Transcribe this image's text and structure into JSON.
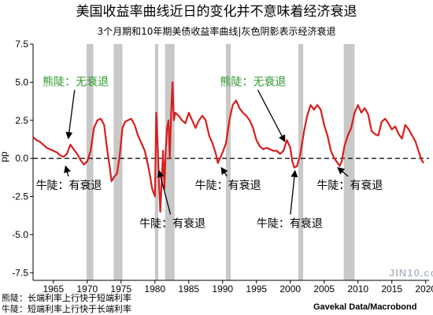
{
  "title": "美国收益率曲线近日的变化并不意味着经济衰退",
  "subtitle": "3个月期和10年期美债收益率曲线|灰色阴影表示经济衰退",
  "footnotes": [
    "熊陡：长端利率上行快于短端利率",
    "牛陡：短端利率上行快于长端利率"
  ],
  "source": "Gavekal Data/Macrobond",
  "watermark": "JIN10.com",
  "colors": {
    "line": "#d81e1e",
    "recession": "#c8c8c8",
    "bear_label": "#2e9a2e",
    "zero_line": "#000000"
  },
  "annotations": [
    {
      "text": "熊陡：无衰退",
      "type": "bear",
      "x": 1968.3,
      "y": 4.8,
      "target": [
        1967.2,
        1.3
      ]
    },
    {
      "text": "熊陡：无衰退",
      "type": "bear",
      "x": 1994.5,
      "y": 4.8,
      "target": [
        1999.2,
        1.1
      ]
    },
    {
      "text": "牛陡：有衰退",
      "type": "bull",
      "x": 1967.3,
      "y": -2.0,
      "target": [
        1966.8,
        -0.5
      ]
    },
    {
      "text": "牛陡：有衰退",
      "type": "bull",
      "x": 1982.6,
      "y": -4.5,
      "target": [
        1980.6,
        -0.8
      ]
    },
    {
      "text": "牛陡：有衰退",
      "type": "bull",
      "x": 1990.8,
      "y": -2.0,
      "target": [
        1989.8,
        -0.6
      ]
    },
    {
      "text": "牛陡：有衰退",
      "type": "bull",
      "x": 1999.9,
      "y": -4.5,
      "target": [
        2000.7,
        -0.8
      ]
    },
    {
      "text": "牛陡：有衰退",
      "type": "bull",
      "x": 2008.8,
      "y": -2.0,
      "target": [
        2007.0,
        -0.6
      ]
    }
  ],
  "chart_data": {
    "type": "line",
    "title": "美国收益率曲线近日的变化并不意味着经济衰退",
    "subtitle": "3个月期和10年期美债收益率曲线|灰色阴影表示经济衰退",
    "xlabel": "",
    "ylabel": "pp",
    "xlim": [
      1962,
      2020.5
    ],
    "ylim": [
      -8,
      7.5
    ],
    "xticks": [
      1965,
      1970,
      1975,
      1980,
      1985,
      1990,
      1995,
      2000,
      2005,
      2010,
      2015,
      2020
    ],
    "yticks": [
      7.5,
      5.0,
      2.5,
      0.0,
      -2.5,
      -5.0,
      -7.5
    ],
    "ytick_labels": [
      "7.5",
      "5.0",
      "2.5",
      "0.0",
      "-2.5",
      "-5.0",
      "-7.5"
    ],
    "reference_line": {
      "y": 0,
      "style": "dashed"
    },
    "recessions": [
      [
        1969.9,
        1970.9
      ],
      [
        1973.9,
        1975.2
      ],
      [
        1980.0,
        1980.5
      ],
      [
        1981.5,
        1982.9
      ],
      [
        1990.5,
        1991.2
      ],
      [
        2001.2,
        2001.9
      ],
      [
        2007.9,
        2009.5
      ]
    ],
    "series": [
      {
        "x": [
          1962.0,
          1962.5,
          1963.0,
          1963.5,
          1964.0,
          1964.5,
          1965.0,
          1965.5,
          1966.0,
          1966.5,
          1967.0,
          1967.5,
          1968.0,
          1968.5,
          1969.0,
          1969.5,
          1970.0,
          1970.5,
          1971.0,
          1971.5,
          1972.0,
          1972.5,
          1973.0,
          1973.3,
          1973.6,
          1974.0,
          1974.4,
          1974.8,
          1975.2,
          1975.6,
          1976.0,
          1976.5,
          1977.0,
          1977.5,
          1978.0,
          1978.5,
          1979.0,
          1979.3,
          1979.6,
          1980.0,
          1980.2,
          1980.4,
          1980.6,
          1980.8,
          1981.0,
          1981.2,
          1981.4,
          1981.6,
          1981.8,
          1982.0,
          1982.2,
          1982.4,
          1982.6,
          1982.8,
          1983.0,
          1983.5,
          1984.0,
          1984.5,
          1985.0,
          1985.5,
          1986.0,
          1986.5,
          1987.0,
          1987.5,
          1988.0,
          1988.5,
          1989.0,
          1989.3,
          1989.6,
          1990.0,
          1990.5,
          1991.0,
          1991.5,
          1992.0,
          1992.5,
          1993.0,
          1993.5,
          1994.0,
          1994.5,
          1995.0,
          1995.5,
          1996.0,
          1996.5,
          1997.0,
          1997.5,
          1998.0,
          1998.5,
          1999.0,
          1999.5,
          2000.0,
          2000.3,
          2000.6,
          2001.0,
          2001.5,
          2002.0,
          2002.5,
          2003.0,
          2003.5,
          2004.0,
          2004.5,
          2005.0,
          2005.5,
          2006.0,
          2006.5,
          2007.0,
          2007.3,
          2007.6,
          2008.0,
          2008.5,
          2009.0,
          2009.5,
          2010.0,
          2010.5,
          2011.0,
          2011.5,
          2012.0,
          2012.5,
          2013.0,
          2013.5,
          2014.0,
          2014.5,
          2015.0,
          2015.5,
          2016.0,
          2016.5,
          2017.0,
          2017.5,
          2018.0,
          2018.5,
          2019.0,
          2019.4,
          2019.7
        ],
        "values": [
          1.4,
          1.2,
          1.1,
          0.9,
          0.7,
          0.6,
          0.5,
          0.4,
          0.2,
          0.1,
          0.3,
          0.9,
          0.6,
          0.3,
          -0.1,
          -0.4,
          -0.2,
          0.5,
          2.0,
          2.5,
          2.6,
          2.2,
          0.4,
          -0.5,
          -1.5,
          -1.2,
          -1.0,
          0.2,
          2.0,
          2.4,
          2.5,
          2.6,
          2.2,
          1.5,
          1.0,
          0.5,
          -0.5,
          -1.2,
          -2.0,
          -2.5,
          3.0,
          1.0,
          -1.5,
          -3.5,
          -1.5,
          0.5,
          -2.0,
          0.5,
          2.0,
          2.5,
          0.0,
          3.0,
          5.0,
          2.5,
          3.0,
          2.8,
          2.5,
          2.3,
          3.0,
          2.5,
          2.0,
          2.5,
          2.8,
          2.5,
          1.5,
          1.0,
          0.3,
          -0.3,
          0.0,
          0.4,
          1.0,
          2.5,
          3.5,
          3.8,
          3.3,
          3.0,
          2.8,
          2.5,
          2.0,
          1.2,
          0.8,
          0.6,
          0.7,
          0.6,
          0.5,
          0.5,
          0.3,
          0.5,
          1.2,
          0.7,
          -0.2,
          -0.6,
          -0.5,
          0.3,
          1.7,
          2.8,
          3.5,
          3.2,
          3.5,
          3.2,
          2.2,
          1.5,
          0.5,
          0.0,
          -0.3,
          -0.5,
          -0.2,
          0.8,
          1.5,
          2.0,
          3.0,
          3.5,
          3.0,
          3.3,
          2.9,
          1.8,
          1.6,
          1.5,
          2.4,
          2.6,
          2.3,
          1.9,
          2.1,
          1.6,
          1.3,
          2.2,
          1.9,
          1.5,
          1.1,
          0.4,
          -0.1,
          -0.3
        ]
      }
    ]
  }
}
